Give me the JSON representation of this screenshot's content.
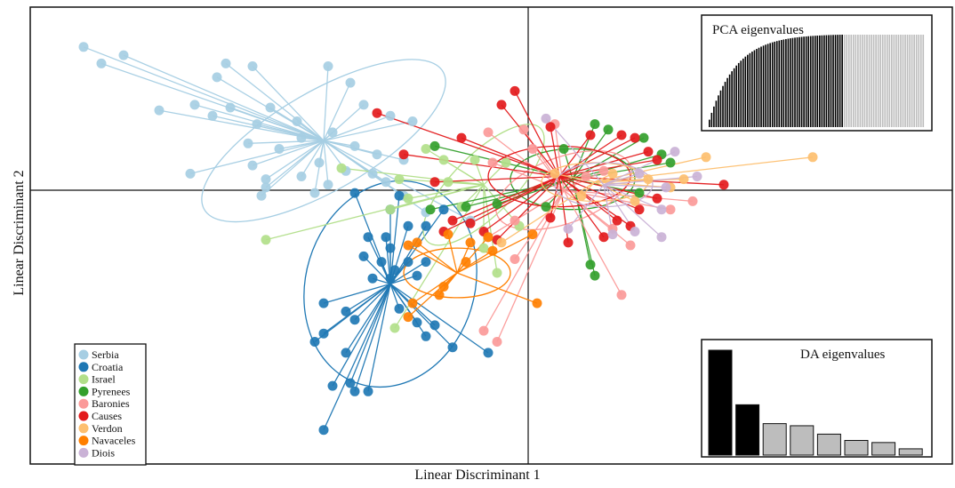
{
  "chart_data": {
    "type": "scatter",
    "title": "",
    "xlabel": "Linear Discriminant 1",
    "ylabel": "Linear Discriminant 2",
    "xlim": [
      -5.5,
      5.5
    ],
    "ylim": [
      -5,
      3.3
    ],
    "grid": false,
    "legend_position": "bottom-left",
    "origin_lines": true,
    "series": [
      {
        "name": "Serbia",
        "color": "#a6cee3",
        "centroid": [
          -2.3,
          0.9
        ],
        "ellipse": {
          "rx": 1.55,
          "ry": 0.9,
          "angle": -30
        },
        "points": [
          [
            -5.0,
            2.6
          ],
          [
            -4.8,
            2.3
          ],
          [
            -4.55,
            2.45
          ],
          [
            -3.4,
            2.3
          ],
          [
            -3.1,
            2.25
          ],
          [
            -3.5,
            2.05
          ],
          [
            -2.25,
            2.25
          ],
          [
            -2.0,
            1.95
          ],
          [
            -4.15,
            1.45
          ],
          [
            -3.75,
            1.55
          ],
          [
            -3.55,
            1.35
          ],
          [
            -3.35,
            1.5
          ],
          [
            -2.9,
            1.5
          ],
          [
            -2.6,
            1.25
          ],
          [
            -1.55,
            1.35
          ],
          [
            -1.85,
            1.55
          ],
          [
            -1.3,
            1.25
          ],
          [
            -3.05,
            1.2
          ],
          [
            -3.15,
            0.85
          ],
          [
            -2.8,
            0.75
          ],
          [
            -2.55,
            0.95
          ],
          [
            -2.2,
            1.05
          ],
          [
            -1.95,
            0.8
          ],
          [
            -1.7,
            0.65
          ],
          [
            -2.35,
            0.5
          ],
          [
            -2.05,
            0.35
          ],
          [
            -1.75,
            0.3
          ],
          [
            -1.4,
            0.55
          ],
          [
            -3.8,
            0.3
          ],
          [
            -3.1,
            0.45
          ],
          [
            -2.95,
            0.2
          ],
          [
            -2.55,
            0.25
          ],
          [
            -2.25,
            0.1
          ],
          [
            -1.6,
            0.15
          ],
          [
            -3.0,
            -0.1
          ],
          [
            -2.4,
            -0.05
          ],
          [
            -2.95,
            0.05
          ],
          [
            -1.4,
            -0.1
          ],
          [
            -1.15,
            -0.4
          ],
          [
            -0.65,
            -0.55
          ]
        ]
      },
      {
        "name": "Croatia",
        "color": "#1f78b4",
        "centroid": [
          -1.55,
          -1.7
        ],
        "ellipse": {
          "rx": 0.95,
          "ry": 1.9,
          "angle": 17
        },
        "points": [
          [
            -1.95,
            -0.05
          ],
          [
            -1.45,
            -0.1
          ],
          [
            -1.55,
            -0.35
          ],
          [
            -1.35,
            -0.65
          ],
          [
            -0.95,
            -0.35
          ],
          [
            -1.15,
            -0.65
          ],
          [
            -1.8,
            -0.85
          ],
          [
            -1.6,
            -0.85
          ],
          [
            -1.55,
            -1.05
          ],
          [
            -1.85,
            -1.2
          ],
          [
            -1.35,
            -1.3
          ],
          [
            -1.15,
            -1.3
          ],
          [
            -1.5,
            -1.45
          ],
          [
            -1.25,
            -1.55
          ],
          [
            -1.65,
            -1.3
          ],
          [
            -1.55,
            -1.6
          ],
          [
            -1.75,
            -1.6
          ],
          [
            -2.3,
            -2.05
          ],
          [
            -2.05,
            -2.2
          ],
          [
            -1.95,
            -2.35
          ],
          [
            -1.45,
            -2.15
          ],
          [
            -1.25,
            -2.4
          ],
          [
            -2.3,
            -2.6
          ],
          [
            -2.4,
            -2.75
          ],
          [
            -2.05,
            -2.95
          ],
          [
            -1.15,
            -2.65
          ],
          [
            -1.05,
            -2.45
          ],
          [
            -0.85,
            -2.85
          ],
          [
            -0.45,
            -2.95
          ],
          [
            -2.2,
            -3.55
          ],
          [
            -2.0,
            -3.5
          ],
          [
            -1.95,
            -3.65
          ],
          [
            -1.8,
            -3.65
          ],
          [
            -2.3,
            -4.35
          ]
        ]
      },
      {
        "name": "Israel",
        "color": "#b2df8a",
        "centroid": [
          -0.5,
          0.1
        ],
        "ellipse": {
          "rx": 0.9,
          "ry": 0.55,
          "angle": -45
        },
        "points": [
          [
            -2.95,
            -0.9
          ],
          [
            -2.1,
            0.4
          ],
          [
            -1.15,
            0.75
          ],
          [
            -0.9,
            0.15
          ],
          [
            -1.45,
            0.2
          ],
          [
            -0.95,
            0.55
          ],
          [
            -1.35,
            -0.15
          ],
          [
            -1.55,
            -0.35
          ],
          [
            -1.5,
            -2.5
          ],
          [
            -0.5,
            -1.05
          ],
          [
            -0.35,
            -1.5
          ],
          [
            -0.1,
            -0.65
          ],
          [
            -0.75,
            -0.3
          ],
          [
            -0.25,
            0.5
          ],
          [
            -0.6,
            0.55
          ]
        ]
      },
      {
        "name": "Pyrenees",
        "color": "#33a02c",
        "centroid": [
          0.5,
          0.2
        ],
        "ellipse": {
          "rx": 0.7,
          "ry": 0.55,
          "angle": 0
        },
        "points": [
          [
            -1.05,
            0.8
          ],
          [
            -1.1,
            -0.35
          ],
          [
            -0.7,
            -0.3
          ],
          [
            -0.35,
            -0.25
          ],
          [
            0.75,
            1.2
          ],
          [
            0.9,
            1.1
          ],
          [
            1.3,
            0.95
          ],
          [
            1.5,
            0.65
          ],
          [
            1.6,
            0.5
          ],
          [
            0.4,
            0.75
          ],
          [
            0.2,
            -0.3
          ],
          [
            0.7,
            -1.35
          ],
          [
            0.75,
            -1.55
          ],
          [
            1.25,
            -0.05
          ]
        ]
      },
      {
        "name": "Baronies",
        "color": "#fb9a99",
        "centroid": [
          0.4,
          0.0
        ],
        "ellipse": {
          "rx": 0.8,
          "ry": 0.6,
          "angle": -20
        },
        "points": [
          [
            -0.45,
            1.05
          ],
          [
            -0.05,
            1.1
          ],
          [
            0.3,
            1.2
          ],
          [
            0.05,
            0.75
          ],
          [
            -0.4,
            0.5
          ],
          [
            -0.15,
            -0.55
          ],
          [
            -0.45,
            -0.85
          ],
          [
            -0.15,
            -1.25
          ],
          [
            -0.5,
            -2.55
          ],
          [
            -0.35,
            -2.75
          ],
          [
            1.05,
            -1.9
          ],
          [
            1.15,
            -1.0
          ],
          [
            0.95,
            -0.7
          ],
          [
            1.6,
            -0.35
          ],
          [
            1.85,
            -0.2
          ],
          [
            0.65,
            0.25
          ],
          [
            0.85,
            0.35
          ]
        ]
      },
      {
        "name": "Causes",
        "color": "#e31a1c",
        "centroid": [
          0.35,
          0.25
        ],
        "ellipse": {
          "rx": 0.8,
          "ry": 0.55,
          "angle": 0
        },
        "points": [
          [
            -1.7,
            1.4
          ],
          [
            -0.3,
            1.55
          ],
          [
            -0.15,
            1.8
          ],
          [
            0.25,
            1.15
          ],
          [
            -0.75,
            0.95
          ],
          [
            -1.4,
            0.65
          ],
          [
            -1.05,
            0.15
          ],
          [
            -0.85,
            -0.55
          ],
          [
            -0.65,
            -0.6
          ],
          [
            -0.5,
            -0.75
          ],
          [
            -0.95,
            -0.75
          ],
          [
            -0.35,
            -0.9
          ],
          [
            0.7,
            1.0
          ],
          [
            1.05,
            1.0
          ],
          [
            1.2,
            0.95
          ],
          [
            1.45,
            0.55
          ],
          [
            1.35,
            0.7
          ],
          [
            2.2,
            0.1
          ],
          [
            1.45,
            -0.15
          ],
          [
            1.25,
            -0.35
          ],
          [
            1.0,
            -0.55
          ],
          [
            1.15,
            -0.65
          ],
          [
            0.85,
            -0.85
          ],
          [
            0.45,
            -0.95
          ],
          [
            0.25,
            -0.5
          ]
        ]
      },
      {
        "name": "Verdon",
        "color": "#fdbf6f",
        "centroid": [
          0.75,
          0.15
        ],
        "ellipse": {
          "rx": 0.6,
          "ry": 0.35,
          "angle": 0
        },
        "points": [
          [
            3.2,
            0.6
          ],
          [
            2.0,
            0.6
          ],
          [
            1.75,
            0.2
          ],
          [
            1.35,
            0.2
          ],
          [
            0.95,
            0.3
          ],
          [
            1.6,
            0.05
          ],
          [
            1.2,
            -0.2
          ],
          [
            0.6,
            -0.1
          ],
          [
            0.3,
            0.3
          ],
          [
            -0.3,
            -0.95
          ]
        ]
      },
      {
        "name": "Navaceles",
        "color": "#ff7f00",
        "centroid": [
          -0.8,
          -1.5
        ],
        "ellipse": {
          "rx": 0.6,
          "ry": 0.45,
          "angle": 0
        },
        "points": [
          [
            -1.25,
            -0.95
          ],
          [
            -1.35,
            -1.0
          ],
          [
            -0.9,
            -0.8
          ],
          [
            -0.65,
            -0.95
          ],
          [
            -0.45,
            -0.85
          ],
          [
            -0.7,
            -1.3
          ],
          [
            -1.0,
            -1.9
          ],
          [
            -1.3,
            -2.05
          ],
          [
            -1.35,
            -2.3
          ],
          [
            -0.95,
            -1.75
          ],
          [
            0.1,
            -2.05
          ],
          [
            -0.4,
            -1.1
          ],
          [
            0.05,
            -0.8
          ]
        ]
      },
      {
        "name": "Diois",
        "color": "#cab2d6",
        "centroid": [
          0.85,
          0.1
        ],
        "ellipse": {
          "rx": 0.55,
          "ry": 0.4,
          "angle": 0
        },
        "points": [
          [
            0.2,
            1.3
          ],
          [
            1.65,
            0.7
          ],
          [
            1.9,
            0.25
          ],
          [
            1.5,
            -0.35
          ],
          [
            1.2,
            -0.75
          ],
          [
            0.95,
            -0.8
          ],
          [
            1.5,
            -0.85
          ],
          [
            0.45,
            -0.7
          ],
          [
            1.25,
            0.3
          ],
          [
            1.55,
            0.05
          ]
        ]
      }
    ],
    "insets": [
      {
        "title": "PCA eigenvalues",
        "position": "top-right",
        "type": "bar",
        "n_black": 60,
        "n_grey": 36
      },
      {
        "title": "DA eigenvalues",
        "position": "bottom-right",
        "type": "bar",
        "values": [
          100,
          48,
          30,
          28,
          20,
          14,
          12,
          6
        ],
        "colors": [
          "#000000",
          "#000000",
          "#bdbdbd",
          "#bdbdbd",
          "#bdbdbd",
          "#bdbdbd",
          "#bdbdbd",
          "#bdbdbd"
        ]
      }
    ]
  }
}
